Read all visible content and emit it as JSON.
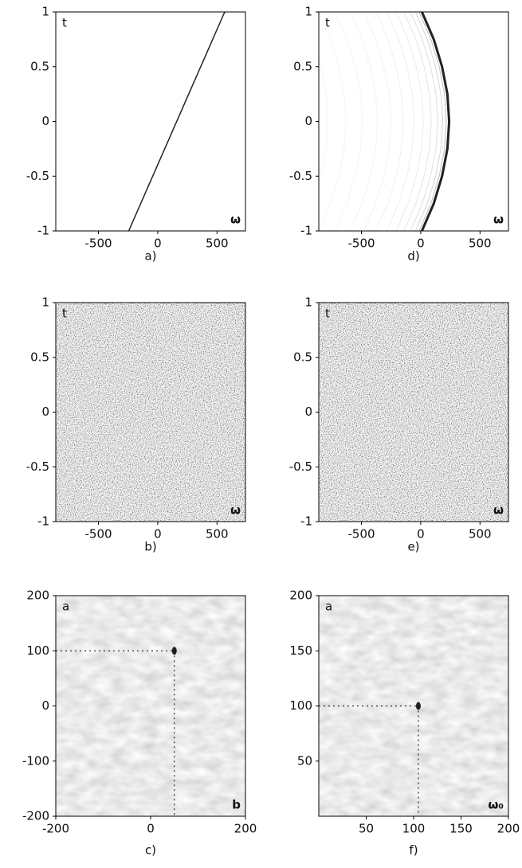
{
  "chart_data": [
    {
      "type": "line",
      "caption": "a)",
      "y_label": "t",
      "x_label": "ω",
      "x": [
        -245,
        565
      ],
      "values": [
        -1,
        1
      ],
      "color": "#222",
      "xlim": [
        -860,
        740
      ],
      "ylim": [
        -1,
        1
      ],
      "xticks": [
        -500,
        0,
        500
      ],
      "yticks": [
        -1,
        -0.5,
        0,
        0.5,
        1
      ]
    },
    {
      "type": "heatmap",
      "caption": "b)",
      "y_label": "t",
      "x_label": "ω",
      "xlim": [
        -860,
        740
      ],
      "ylim": [
        -1,
        1
      ],
      "xticks": [
        -500,
        0,
        500
      ],
      "yticks": [
        -1,
        -0.5,
        0,
        0.5,
        1
      ]
    },
    {
      "type": "scatter",
      "caption": "c)",
      "y_label": "a",
      "x_label": "b",
      "x": [
        50
      ],
      "values": [
        100
      ],
      "color": "#222",
      "xlim": [
        -200,
        200
      ],
      "ylim": [
        -200,
        200
      ],
      "xticks": [
        -200,
        0,
        200
      ],
      "yticks": [
        -200,
        -100,
        0,
        100,
        200
      ]
    },
    {
      "type": "line",
      "caption": "d)",
      "y_label": "t",
      "x_label": "ω",
      "x": [
        10,
        110,
        180,
        225,
        240,
        225,
        180,
        110,
        10
      ],
      "values": [
        -1,
        -0.75,
        -0.5,
        -0.25,
        0,
        0.25,
        0.5,
        0.75,
        1
      ],
      "color": "#222",
      "xlim": [
        -860,
        740
      ],
      "ylim": [
        -1,
        1
      ],
      "xticks": [
        -500,
        0,
        500
      ],
      "yticks": [
        -1,
        -0.5,
        0,
        0.5,
        1
      ]
    },
    {
      "type": "heatmap",
      "caption": "e)",
      "y_label": "t",
      "x_label": "ω",
      "xlim": [
        -860,
        740
      ],
      "ylim": [
        -1,
        1
      ],
      "xticks": [
        -500,
        0,
        500
      ],
      "yticks": [
        -1,
        -0.5,
        0,
        0.5,
        1
      ]
    },
    {
      "type": "scatter",
      "caption": "f)",
      "y_label": "a",
      "x_label": "ω₀",
      "x": [
        105
      ],
      "values": [
        100
      ],
      "color": "#222",
      "xlim": [
        0,
        200
      ],
      "ylim": [
        0,
        200
      ],
      "xticks": [
        50,
        100,
        150,
        200
      ],
      "yticks": [
        50,
        100,
        150,
        200
      ]
    }
  ]
}
